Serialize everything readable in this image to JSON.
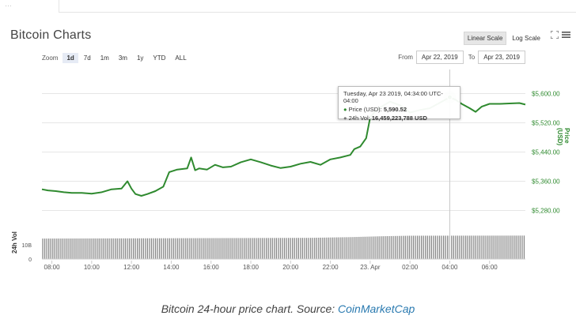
{
  "page": {
    "title": "Bitcoin Charts",
    "caption_text": "Bitcoin 24-hour price chart. Source: ",
    "caption_link": "CoinMarketCap"
  },
  "toolbar": {
    "scale_options": [
      {
        "label": "Linear Scale",
        "active": true
      },
      {
        "label": "Log Scale",
        "active": false
      }
    ],
    "fullscreen_icon": "fullscreen-icon",
    "menu_icon": "hamburger-menu-icon",
    "zoom_label": "Zoom",
    "zoom_options": [
      {
        "label": "1d",
        "active": true
      },
      {
        "label": "7d",
        "active": false
      },
      {
        "label": "1m",
        "active": false
      },
      {
        "label": "3m",
        "active": false
      },
      {
        "label": "1y",
        "active": false
      },
      {
        "label": "YTD",
        "active": false
      },
      {
        "label": "ALL",
        "active": false
      }
    ],
    "from_label": "From",
    "from_value": "Apr 22, 2019",
    "to_label": "To",
    "to_value": "Apr 23, 2019"
  },
  "tooltip": {
    "time": "Tuesday, Apr 23 2019, 04:34:00 UTC-04:00",
    "price_label": "Price (USD):",
    "price_value": "5,590.52",
    "vol_label": "24h Vol:",
    "vol_value": "16,459,223,788 USD"
  },
  "colors": {
    "price_line": "#2f8a2f",
    "volume_bar": "#888888",
    "grid": "#e6e6e6",
    "link": "#2a7ab0"
  },
  "chart_data": {
    "type": "line",
    "ylabel": "Price (USD)",
    "y2label": "24h Vol",
    "ylim": [
      5240,
      5640
    ],
    "y_ticks": [
      5280,
      5360,
      5440,
      5520,
      5600
    ],
    "y_tick_labels": [
      "$5,280.00",
      "$5,360.00",
      "$5,440.00",
      "$5,520.00",
      "$5,600.00"
    ],
    "x_tick_labels": [
      "08:00",
      "10:00",
      "12:00",
      "14:00",
      "16:00",
      "18:00",
      "20:00",
      "22:00",
      "23. Apr",
      "02:00",
      "04:00",
      "06:00"
    ],
    "x_range_hours": [
      7.5,
      31.8
    ],
    "vol_ticks": [
      "10B",
      "0"
    ],
    "series": [
      {
        "name": "Price (USD)",
        "x": [
          7.5,
          7.8,
          8.2,
          8.6,
          9.0,
          9.5,
          10.0,
          10.5,
          11.0,
          11.5,
          11.8,
          12.0,
          12.2,
          12.5,
          12.8,
          13.2,
          13.6,
          13.9,
          14.3,
          14.8,
          15.0,
          15.2,
          15.4,
          15.8,
          16.2,
          16.6,
          17.0,
          17.5,
          18.0,
          18.5,
          19.0,
          19.5,
          20.0,
          20.5,
          21.0,
          21.5,
          22.0,
          22.5,
          23.0,
          23.2,
          23.5,
          23.8,
          24.0,
          24.2,
          24.5,
          25.0,
          25.5,
          26.0,
          26.5,
          27.0,
          27.5,
          28.0,
          28.3,
          28.6,
          29.0,
          29.3,
          29.6,
          30.0,
          30.5,
          31.0,
          31.5,
          31.8
        ],
        "values": [
          5338,
          5335,
          5333,
          5330,
          5328,
          5328,
          5326,
          5330,
          5338,
          5340,
          5360,
          5340,
          5325,
          5320,
          5325,
          5333,
          5345,
          5385,
          5392,
          5395,
          5425,
          5390,
          5395,
          5392,
          5405,
          5398,
          5400,
          5412,
          5420,
          5412,
          5403,
          5396,
          5400,
          5408,
          5413,
          5405,
          5420,
          5425,
          5432,
          5448,
          5455,
          5478,
          5535,
          5548,
          5562,
          5578,
          5568,
          5548,
          5555,
          5560,
          5575,
          5590,
          5583,
          5572,
          5560,
          5550,
          5564,
          5572,
          5572,
          5573,
          5574,
          5570
        ]
      },
      {
        "name": "24h Vol",
        "x": [
          7.5,
          21.0,
          23.0,
          24.5,
          26.0,
          31.8
        ],
        "values": [
          14.4,
          14.9,
          15.4,
          16.0,
          16.4,
          16.5
        ]
      }
    ]
  }
}
